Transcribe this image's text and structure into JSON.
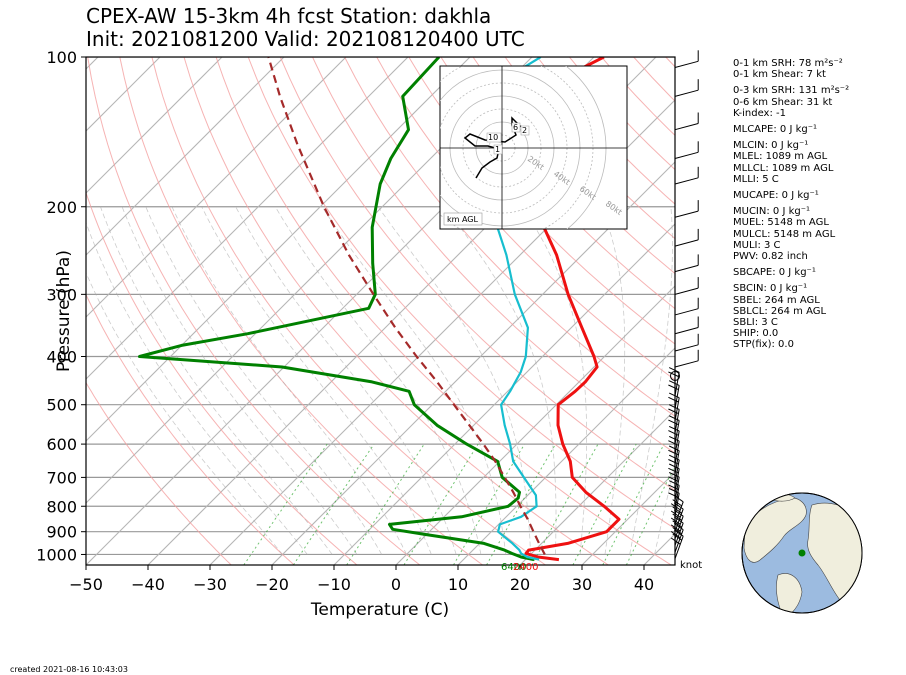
{
  "title": {
    "line1": "CPEX-AW 15-3km  4h fcst  Station: dakhla",
    "line2": "Init: 2021081200  Valid: 202108120400 UTC"
  },
  "footer": {
    "created": "created 2021-08-16 10:43:03"
  },
  "wind_unit_label": "knot",
  "hodograph": {
    "box_label": "km AGL",
    "ring_labels": [
      "20kt",
      "40kt",
      "60kt",
      "80kt"
    ],
    "height_labels": [
      "10",
      "6",
      "2",
      "1"
    ]
  },
  "surface_labels": {
    "dewpoint": "6400",
    "temperature": "2400"
  },
  "params": [
    "0-1 km SRH: 78 m²s⁻²",
    "0-1 km Shear: 7 kt",
    "0-3 km SRH: 131 m²s⁻²",
    "0-6 km Shear: 31 kt",
    "K-index: -1",
    "MLCAPE: 0 J kg⁻¹",
    "MLCIN: 0 J kg⁻¹",
    "MLEL: 1089 m AGL",
    "MLLCL: 1089 m AGL",
    "MLLI: 5 C",
    "MUCAPE: 0 J kg⁻¹",
    "MUCIN: 0 J kg⁻¹",
    "MUEL: 5148 m AGL",
    "MULCL: 5148 m AGL",
    "MULI: 3 C",
    "PWV: 0.82 inch",
    "SBCAPE: 0 J kg⁻¹",
    "SBCIN: 0 J kg⁻¹",
    "SBEL: 264 m AGL",
    "SBLCL: 264 m AGL",
    "SBLI: 3 C",
    "SHIP: 0.0",
    "STP(fix): 0.0"
  ],
  "colors": {
    "temperature": "#ee1111",
    "dewpoint": "#008000",
    "wetbulb": "#17becf",
    "parcel": "#a52a2a",
    "dry_adiabat": "#f4a0a0",
    "moist_adiabat": "#aaaaaa",
    "mixing_ratio": "#33aa33",
    "isobar": "#999999",
    "land": "#f0eedd",
    "ocean": "#9cbbe0"
  },
  "chart_data": {
    "type": "line",
    "chart_kind": "skew-T log-p",
    "xlabel": "Temperature (C)",
    "ylabel": "Pressure (hPa)",
    "xlim": [
      -50,
      45
    ],
    "ylim": [
      1050,
      100
    ],
    "y_scale": "log",
    "x_ticks": [
      -50,
      -40,
      -30,
      -20,
      -10,
      0,
      10,
      20,
      30,
      40
    ],
    "y_ticks": [
      100,
      200,
      300,
      400,
      500,
      600,
      700,
      800,
      900,
      1000
    ],
    "grid": true,
    "series": [
      {
        "name": "temperature",
        "points": [
          [
            1024,
            25.4
          ],
          [
            1012,
            21.6
          ],
          [
            995,
            19.1
          ],
          [
            980,
            19.0
          ],
          [
            950,
            24.2
          ],
          [
            900,
            28.6
          ],
          [
            850,
            28.6
          ],
          [
            800,
            24.1
          ],
          [
            750,
            18.9
          ],
          [
            700,
            14.3
          ],
          [
            650,
            11.4
          ],
          [
            600,
            7.4
          ],
          [
            550,
            3.6
          ],
          [
            500,
            0.3
          ],
          [
            470,
            0.9
          ],
          [
            450,
            1.0
          ],
          [
            420,
            0.5
          ],
          [
            400,
            -1.7
          ],
          [
            350,
            -8.3
          ],
          [
            300,
            -15.9
          ],
          [
            250,
            -24.1
          ],
          [
            220,
            -30.6
          ],
          [
            200,
            -34.8
          ],
          [
            180,
            -39.4
          ],
          [
            160,
            -44.9
          ],
          [
            140,
            -50.5
          ],
          [
            130,
            -53.3
          ],
          [
            120,
            -55.9
          ],
          [
            110,
            -51.6
          ],
          [
            100,
            -48.4
          ]
        ]
      },
      {
        "name": "dewpoint",
        "points": [
          [
            1024,
            21.4
          ],
          [
            1012,
            18.9
          ],
          [
            995,
            16.8
          ],
          [
            980,
            15.1
          ],
          [
            950,
            10.7
          ],
          [
            910,
            -0.6
          ],
          [
            890,
            -6.3
          ],
          [
            870,
            -7.6
          ],
          [
            840,
            2.8
          ],
          [
            800,
            8.6
          ],
          [
            770,
            8.9
          ],
          [
            750,
            8.2
          ],
          [
            700,
            3.0
          ],
          [
            650,
            -0.3
          ],
          [
            600,
            -8.1
          ],
          [
            550,
            -15.9
          ],
          [
            500,
            -22.9
          ],
          [
            470,
            -25.9
          ],
          [
            450,
            -33.4
          ],
          [
            420,
            -50.3
          ],
          [
            400,
            -75.0
          ],
          [
            380,
            -70.0
          ],
          [
            360,
            -61.2
          ],
          [
            320,
            -45.8
          ],
          [
            300,
            -47.0
          ],
          [
            260,
            -52.4
          ],
          [
            220,
            -58.3
          ],
          [
            180,
            -64.0
          ],
          [
            160,
            -66.4
          ],
          [
            140,
            -68.2
          ],
          [
            120,
            -74.5
          ],
          [
            100,
            -75.0
          ]
        ]
      },
      {
        "name": "wetbulb",
        "points": [
          [
            1024,
            22.2
          ],
          [
            1012,
            19.9
          ],
          [
            995,
            18.3
          ],
          [
            980,
            17.5
          ],
          [
            950,
            15.3
          ],
          [
            900,
            11.1
          ],
          [
            870,
            10.2
          ],
          [
            840,
            12.4
          ],
          [
            800,
            13.2
          ],
          [
            760,
            11.3
          ],
          [
            700,
            6.5
          ],
          [
            650,
            2.2
          ],
          [
            600,
            -1.1
          ],
          [
            550,
            -5.0
          ],
          [
            500,
            -8.9
          ],
          [
            470,
            -9.6
          ],
          [
            430,
            -11.0
          ],
          [
            400,
            -12.7
          ],
          [
            350,
            -17.0
          ],
          [
            300,
            -24.5
          ],
          [
            250,
            -32.2
          ],
          [
            220,
            -38.1
          ],
          [
            200,
            -41.5
          ],
          [
            180,
            -45.6
          ],
          [
            160,
            -49.2
          ],
          [
            140,
            -54.8
          ],
          [
            120,
            -60.4
          ],
          [
            110,
            -60.7
          ],
          [
            100,
            -58.6
          ]
        ]
      },
      {
        "name": "parcel",
        "points": [
          [
            1000,
            22.3
          ],
          [
            950,
            19.6
          ],
          [
            900,
            16.8
          ],
          [
            850,
            13.9
          ],
          [
            800,
            10.6
          ],
          [
            750,
            7.2
          ],
          [
            700,
            3.4
          ],
          [
            650,
            -0.7
          ],
          [
            600,
            -5.4
          ],
          [
            550,
            -10.7
          ],
          [
            500,
            -16.5
          ],
          [
            450,
            -22.9
          ],
          [
            400,
            -30.3
          ],
          [
            350,
            -38.4
          ],
          [
            300,
            -47.3
          ],
          [
            250,
            -57.6
          ],
          [
            200,
            -69.4
          ],
          [
            150,
            -83.7
          ],
          [
            120,
            -94.3
          ],
          [
            100,
            -102.5
          ]
        ]
      }
    ],
    "wind_barbs_levels_hpa": [
      1020,
      990,
      960,
      930,
      900,
      870,
      840,
      810,
      780,
      750,
      720,
      690,
      660,
      630,
      600,
      570,
      540,
      510,
      480,
      450,
      420,
      390,
      360,
      330,
      300,
      270,
      240,
      210,
      180,
      160,
      140,
      120,
      105
    ]
  }
}
